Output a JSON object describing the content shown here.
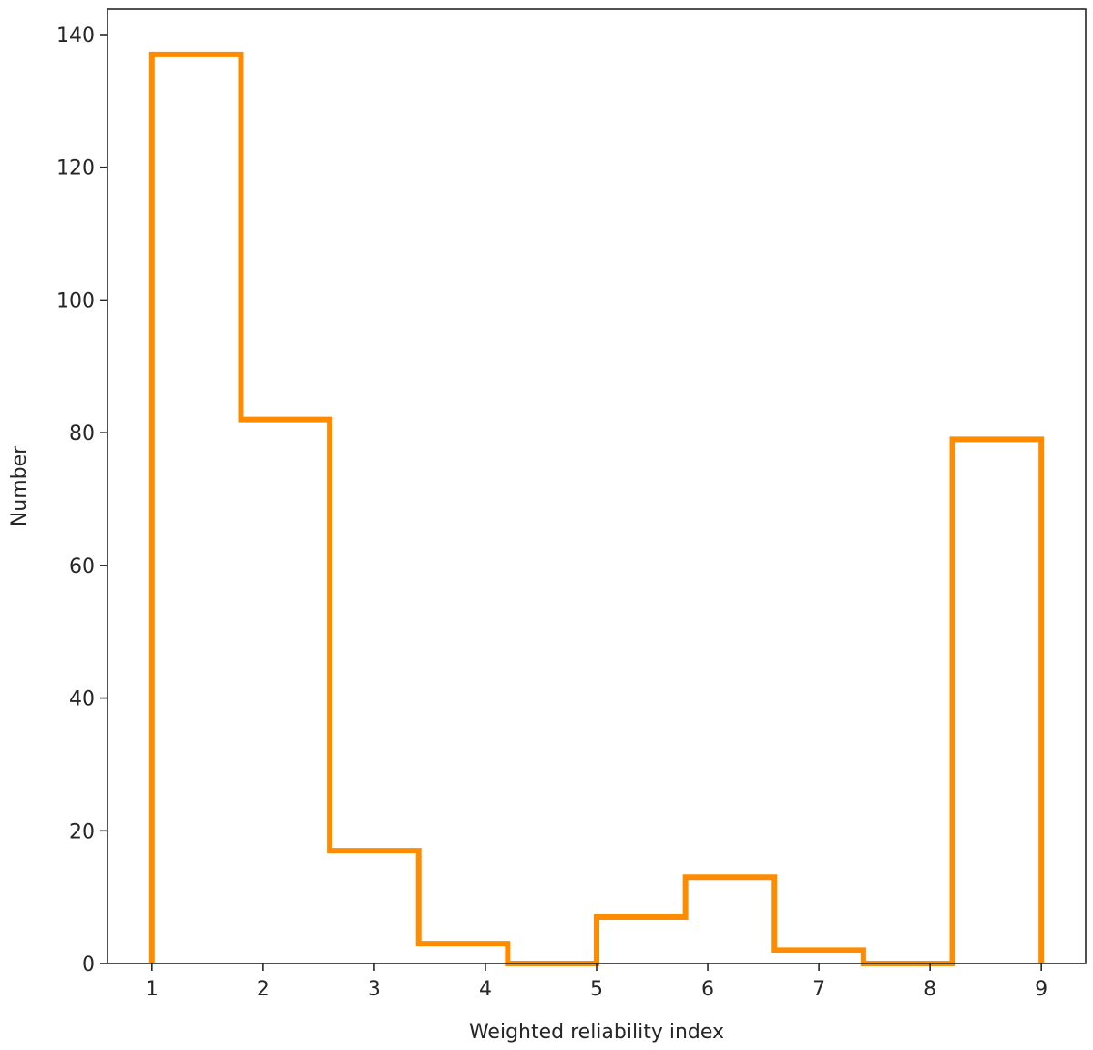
{
  "chart_data": {
    "type": "histogram",
    "xlabel": "Weighted reliability index",
    "ylabel": "Number",
    "xlim": [
      0.6,
      9.4
    ],
    "ylim": [
      0,
      140
    ],
    "xticks": [
      1,
      2,
      3,
      4,
      5,
      6,
      7,
      8,
      9
    ],
    "xtick_labels": [
      "1",
      "2",
      "3",
      "4",
      "5",
      "6",
      "7",
      "8",
      "9"
    ],
    "yticks": [
      0,
      20,
      40,
      60,
      80,
      100,
      120,
      140
    ],
    "ytick_labels": [
      "0",
      "20",
      "40",
      "60",
      "80",
      "100",
      "120",
      "140"
    ],
    "bin_edges": [
      1.0,
      1.8,
      2.6,
      3.4,
      4.2,
      5.0,
      5.8,
      6.6,
      7.4,
      8.2,
      9.0
    ],
    "counts": [
      137,
      82,
      17,
      3,
      0,
      7,
      13,
      2,
      0,
      79
    ],
    "histtype": "step",
    "color": "#ff8c00",
    "grid": false
  }
}
